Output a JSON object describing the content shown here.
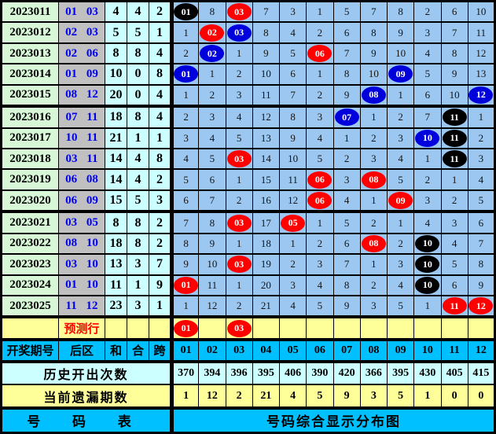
{
  "colors": {
    "grid_bg": "#9BC7F0",
    "period_bg": "#D7F7D7",
    "back_bg": "#C0C0C0",
    "aux_bg": "#CCFFFF",
    "yellow_bg": "#FFFF99",
    "cyan_bg": "#00C0FF",
    "ball_red": "#FF0000",
    "ball_blue": "#0000DC",
    "ball_black": "#000000",
    "back_text": "#0000EE",
    "predict_text": "#FF0000",
    "border": "#000000"
  },
  "chart_data": {
    "type": "table",
    "title": "号码综合显示分布图",
    "columns": [
      "开奖期号",
      "后区",
      "和",
      "合",
      "跨",
      "01",
      "02",
      "03",
      "04",
      "05",
      "06",
      "07",
      "08",
      "09",
      "10",
      "11",
      "12"
    ],
    "header": {
      "period": "开奖期号",
      "back": "后区",
      "sum": "和",
      "he": "合",
      "kua": "跨",
      "numbers": [
        "01",
        "02",
        "03",
        "04",
        "05",
        "06",
        "07",
        "08",
        "09",
        "10",
        "11",
        "12"
      ]
    },
    "rows": [
      {
        "period": "2023011",
        "back": "01 03",
        "sum": "4",
        "he": "4",
        "kua": "2",
        "cells": [
          {
            "t": "01",
            "b": "black"
          },
          {
            "t": "8"
          },
          {
            "t": "03",
            "b": "red"
          },
          {
            "t": "7"
          },
          {
            "t": "3"
          },
          {
            "t": "1"
          },
          {
            "t": "5"
          },
          {
            "t": "7"
          },
          {
            "t": "8"
          },
          {
            "t": "2"
          },
          {
            "t": "6"
          },
          {
            "t": "10"
          }
        ]
      },
      {
        "period": "2023012",
        "back": "02 03",
        "sum": "5",
        "he": "5",
        "kua": "1",
        "cells": [
          {
            "t": "1"
          },
          {
            "t": "02",
            "b": "red"
          },
          {
            "t": "03",
            "b": "blue"
          },
          {
            "t": "8"
          },
          {
            "t": "4"
          },
          {
            "t": "2"
          },
          {
            "t": "6"
          },
          {
            "t": "8"
          },
          {
            "t": "9"
          },
          {
            "t": "3"
          },
          {
            "t": "7"
          },
          {
            "t": "11"
          }
        ]
      },
      {
        "period": "2023013",
        "back": "02 06",
        "sum": "8",
        "he": "8",
        "kua": "4",
        "cells": [
          {
            "t": "2"
          },
          {
            "t": "02",
            "b": "blue"
          },
          {
            "t": "1"
          },
          {
            "t": "9"
          },
          {
            "t": "5"
          },
          {
            "t": "06",
            "b": "red"
          },
          {
            "t": "7"
          },
          {
            "t": "9"
          },
          {
            "t": "10"
          },
          {
            "t": "4"
          },
          {
            "t": "8"
          },
          {
            "t": "12"
          }
        ]
      },
      {
        "period": "2023014",
        "back": "01 09",
        "sum": "10",
        "he": "0",
        "kua": "8",
        "cells": [
          {
            "t": "01",
            "b": "blue"
          },
          {
            "t": "1"
          },
          {
            "t": "2"
          },
          {
            "t": "10"
          },
          {
            "t": "6"
          },
          {
            "t": "1"
          },
          {
            "t": "8"
          },
          {
            "t": "10"
          },
          {
            "t": "09",
            "b": "blue"
          },
          {
            "t": "5"
          },
          {
            "t": "9"
          },
          {
            "t": "13"
          }
        ]
      },
      {
        "period": "2023015",
        "back": "08 12",
        "sum": "20",
        "he": "0",
        "kua": "4",
        "cells": [
          {
            "t": "1"
          },
          {
            "t": "2"
          },
          {
            "t": "3"
          },
          {
            "t": "11"
          },
          {
            "t": "7"
          },
          {
            "t": "2"
          },
          {
            "t": "9"
          },
          {
            "t": "08",
            "b": "blue"
          },
          {
            "t": "1"
          },
          {
            "t": "6"
          },
          {
            "t": "10"
          },
          {
            "t": "12",
            "b": "blue"
          }
        ]
      },
      {
        "period": "2023016",
        "back": "07 11",
        "sum": "18",
        "he": "8",
        "kua": "4",
        "cells": [
          {
            "t": "2"
          },
          {
            "t": "3"
          },
          {
            "t": "4"
          },
          {
            "t": "12"
          },
          {
            "t": "8"
          },
          {
            "t": "3"
          },
          {
            "t": "07",
            "b": "blue"
          },
          {
            "t": "1"
          },
          {
            "t": "2"
          },
          {
            "t": "7"
          },
          {
            "t": "11",
            "b": "black"
          },
          {
            "t": "1"
          }
        ]
      },
      {
        "period": "2023017",
        "back": "10 11",
        "sum": "21",
        "he": "1",
        "kua": "1",
        "cells": [
          {
            "t": "3"
          },
          {
            "t": "4"
          },
          {
            "t": "5"
          },
          {
            "t": "13"
          },
          {
            "t": "9"
          },
          {
            "t": "4"
          },
          {
            "t": "1"
          },
          {
            "t": "2"
          },
          {
            "t": "3"
          },
          {
            "t": "10",
            "b": "blue"
          },
          {
            "t": "11",
            "b": "black"
          },
          {
            "t": "2"
          }
        ]
      },
      {
        "period": "2023018",
        "back": "03 11",
        "sum": "14",
        "he": "4",
        "kua": "8",
        "cells": [
          {
            "t": "4"
          },
          {
            "t": "5"
          },
          {
            "t": "03",
            "b": "red"
          },
          {
            "t": "14"
          },
          {
            "t": "10"
          },
          {
            "t": "5"
          },
          {
            "t": "2"
          },
          {
            "t": "3"
          },
          {
            "t": "4"
          },
          {
            "t": "1"
          },
          {
            "t": "11",
            "b": "black"
          },
          {
            "t": "3"
          }
        ]
      },
      {
        "period": "2023019",
        "back": "06 08",
        "sum": "14",
        "he": "4",
        "kua": "2",
        "cells": [
          {
            "t": "5"
          },
          {
            "t": "6"
          },
          {
            "t": "1"
          },
          {
            "t": "15"
          },
          {
            "t": "11"
          },
          {
            "t": "06",
            "b": "red"
          },
          {
            "t": "3"
          },
          {
            "t": "08",
            "b": "red"
          },
          {
            "t": "5"
          },
          {
            "t": "2"
          },
          {
            "t": "1"
          },
          {
            "t": "4"
          }
        ]
      },
      {
        "period": "2023020",
        "back": "06 09",
        "sum": "15",
        "he": "5",
        "kua": "3",
        "cells": [
          {
            "t": "6"
          },
          {
            "t": "7"
          },
          {
            "t": "2"
          },
          {
            "t": "16"
          },
          {
            "t": "12"
          },
          {
            "t": "06",
            "b": "red"
          },
          {
            "t": "4"
          },
          {
            "t": "1"
          },
          {
            "t": "09",
            "b": "red"
          },
          {
            "t": "3"
          },
          {
            "t": "2"
          },
          {
            "t": "5"
          }
        ]
      },
      {
        "period": "2023021",
        "back": "03 05",
        "sum": "8",
        "he": "8",
        "kua": "2",
        "cells": [
          {
            "t": "7"
          },
          {
            "t": "8"
          },
          {
            "t": "03",
            "b": "red"
          },
          {
            "t": "17"
          },
          {
            "t": "05",
            "b": "red"
          },
          {
            "t": "1"
          },
          {
            "t": "5"
          },
          {
            "t": "2"
          },
          {
            "t": "1"
          },
          {
            "t": "4"
          },
          {
            "t": "3"
          },
          {
            "t": "6"
          }
        ]
      },
      {
        "period": "2023022",
        "back": "08 10",
        "sum": "18",
        "he": "8",
        "kua": "2",
        "cells": [
          {
            "t": "8"
          },
          {
            "t": "9"
          },
          {
            "t": "1"
          },
          {
            "t": "18"
          },
          {
            "t": "1"
          },
          {
            "t": "2"
          },
          {
            "t": "6"
          },
          {
            "t": "08",
            "b": "red"
          },
          {
            "t": "2"
          },
          {
            "t": "10",
            "b": "black"
          },
          {
            "t": "4"
          },
          {
            "t": "7"
          }
        ]
      },
      {
        "period": "2023023",
        "back": "03 10",
        "sum": "13",
        "he": "3",
        "kua": "7",
        "cells": [
          {
            "t": "9"
          },
          {
            "t": "10"
          },
          {
            "t": "03",
            "b": "red"
          },
          {
            "t": "19"
          },
          {
            "t": "2"
          },
          {
            "t": "3"
          },
          {
            "t": "7"
          },
          {
            "t": "1"
          },
          {
            "t": "3"
          },
          {
            "t": "10",
            "b": "black"
          },
          {
            "t": "5"
          },
          {
            "t": "8"
          }
        ]
      },
      {
        "period": "2023024",
        "back": "01 10",
        "sum": "11",
        "he": "1",
        "kua": "9",
        "cells": [
          {
            "t": "01",
            "b": "red"
          },
          {
            "t": "11"
          },
          {
            "t": "1"
          },
          {
            "t": "20"
          },
          {
            "t": "3"
          },
          {
            "t": "4"
          },
          {
            "t": "8"
          },
          {
            "t": "2"
          },
          {
            "t": "4"
          },
          {
            "t": "10",
            "b": "black"
          },
          {
            "t": "6"
          },
          {
            "t": "9"
          }
        ]
      },
      {
        "period": "2023025",
        "back": "11 12",
        "sum": "23",
        "he": "3",
        "kua": "1",
        "cells": [
          {
            "t": "1"
          },
          {
            "t": "12"
          },
          {
            "t": "2"
          },
          {
            "t": "21"
          },
          {
            "t": "4"
          },
          {
            "t": "5"
          },
          {
            "t": "9"
          },
          {
            "t": "3"
          },
          {
            "t": "5"
          },
          {
            "t": "1"
          },
          {
            "t": "11",
            "b": "red"
          },
          {
            "t": "12",
            "b": "red"
          }
        ]
      }
    ],
    "predict_row": {
      "label": "预测行",
      "cells": [
        {
          "t": "01",
          "b": "red"
        },
        {
          "t": ""
        },
        {
          "t": "03",
          "b": "red"
        },
        {
          "t": ""
        },
        {
          "t": ""
        },
        {
          "t": ""
        },
        {
          "t": ""
        },
        {
          "t": ""
        },
        {
          "t": ""
        },
        {
          "t": ""
        },
        {
          "t": ""
        },
        {
          "t": ""
        }
      ]
    },
    "history_row": {
      "label": "历史开出次数",
      "values": [
        "370",
        "394",
        "396",
        "395",
        "406",
        "390",
        "420",
        "366",
        "395",
        "430",
        "405",
        "415"
      ]
    },
    "miss_row": {
      "label": "当前遗漏期数",
      "values": [
        "1",
        "12",
        "2",
        "21",
        "4",
        "5",
        "9",
        "3",
        "5",
        "1",
        "0",
        "0"
      ]
    },
    "footer": {
      "left": "号 码 表",
      "right": "号码综合显示分布图"
    }
  }
}
